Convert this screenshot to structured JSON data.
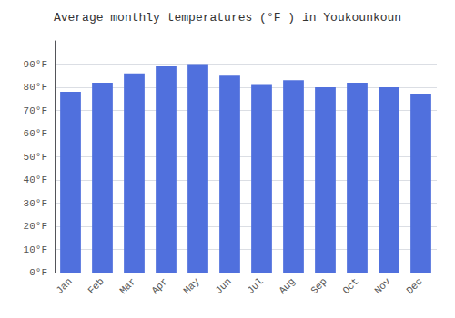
{
  "chart_data": {
    "type": "bar",
    "title": "Average monthly temperatures (°F ) in Youkounkoun",
    "categories": [
      "Jan",
      "Feb",
      "Mar",
      "Apr",
      "May",
      "Jun",
      "Jul",
      "Aug",
      "Sep",
      "Oct",
      "Nov",
      "Dec"
    ],
    "values": [
      78,
      82,
      86,
      89,
      90,
      85,
      81,
      83,
      80,
      82,
      80,
      77
    ],
    "ylim": [
      0,
      100
    ],
    "yticks": [
      {
        "value": 0,
        "label": "0°F"
      },
      {
        "value": 10,
        "label": "10°F"
      },
      {
        "value": 20,
        "label": "20°F"
      },
      {
        "value": 30,
        "label": "30°F"
      },
      {
        "value": 40,
        "label": "40°F"
      },
      {
        "value": 50,
        "label": "50°F"
      },
      {
        "value": 60,
        "label": "60°F"
      },
      {
        "value": 70,
        "label": "70°F"
      },
      {
        "value": 80,
        "label": "80°F"
      },
      {
        "value": 90,
        "label": "90°F"
      }
    ],
    "grid": true
  }
}
